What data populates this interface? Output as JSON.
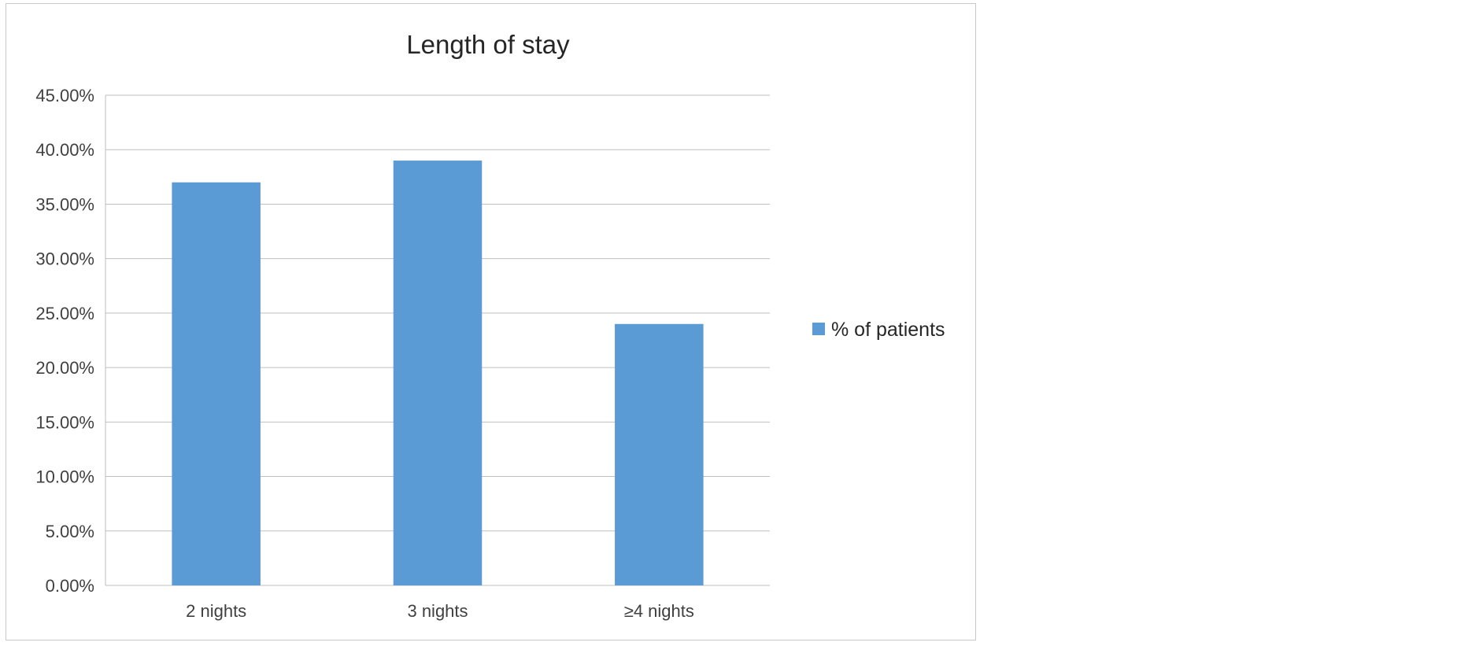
{
  "chart_data": {
    "type": "bar",
    "title": "Length of stay",
    "xlabel": "",
    "ylabel": "",
    "categories": [
      "2 nights",
      "3 nights",
      "≥4 nights"
    ],
    "series": [
      {
        "name": "% of patients",
        "values": [
          37.0,
          39.0,
          24.0
        ],
        "color": "#5b9bd5"
      }
    ],
    "ylim": [
      0,
      45
    ],
    "y_ticks": [
      0,
      5,
      10,
      15,
      20,
      25,
      30,
      35,
      40,
      45
    ],
    "y_tick_labels": [
      "0.00%",
      "5.00%",
      "10.00%",
      "15.00%",
      "20.00%",
      "25.00%",
      "30.00%",
      "35.00%",
      "40.00%",
      "45.00%"
    ],
    "grid": true,
    "legend_position": "right"
  }
}
